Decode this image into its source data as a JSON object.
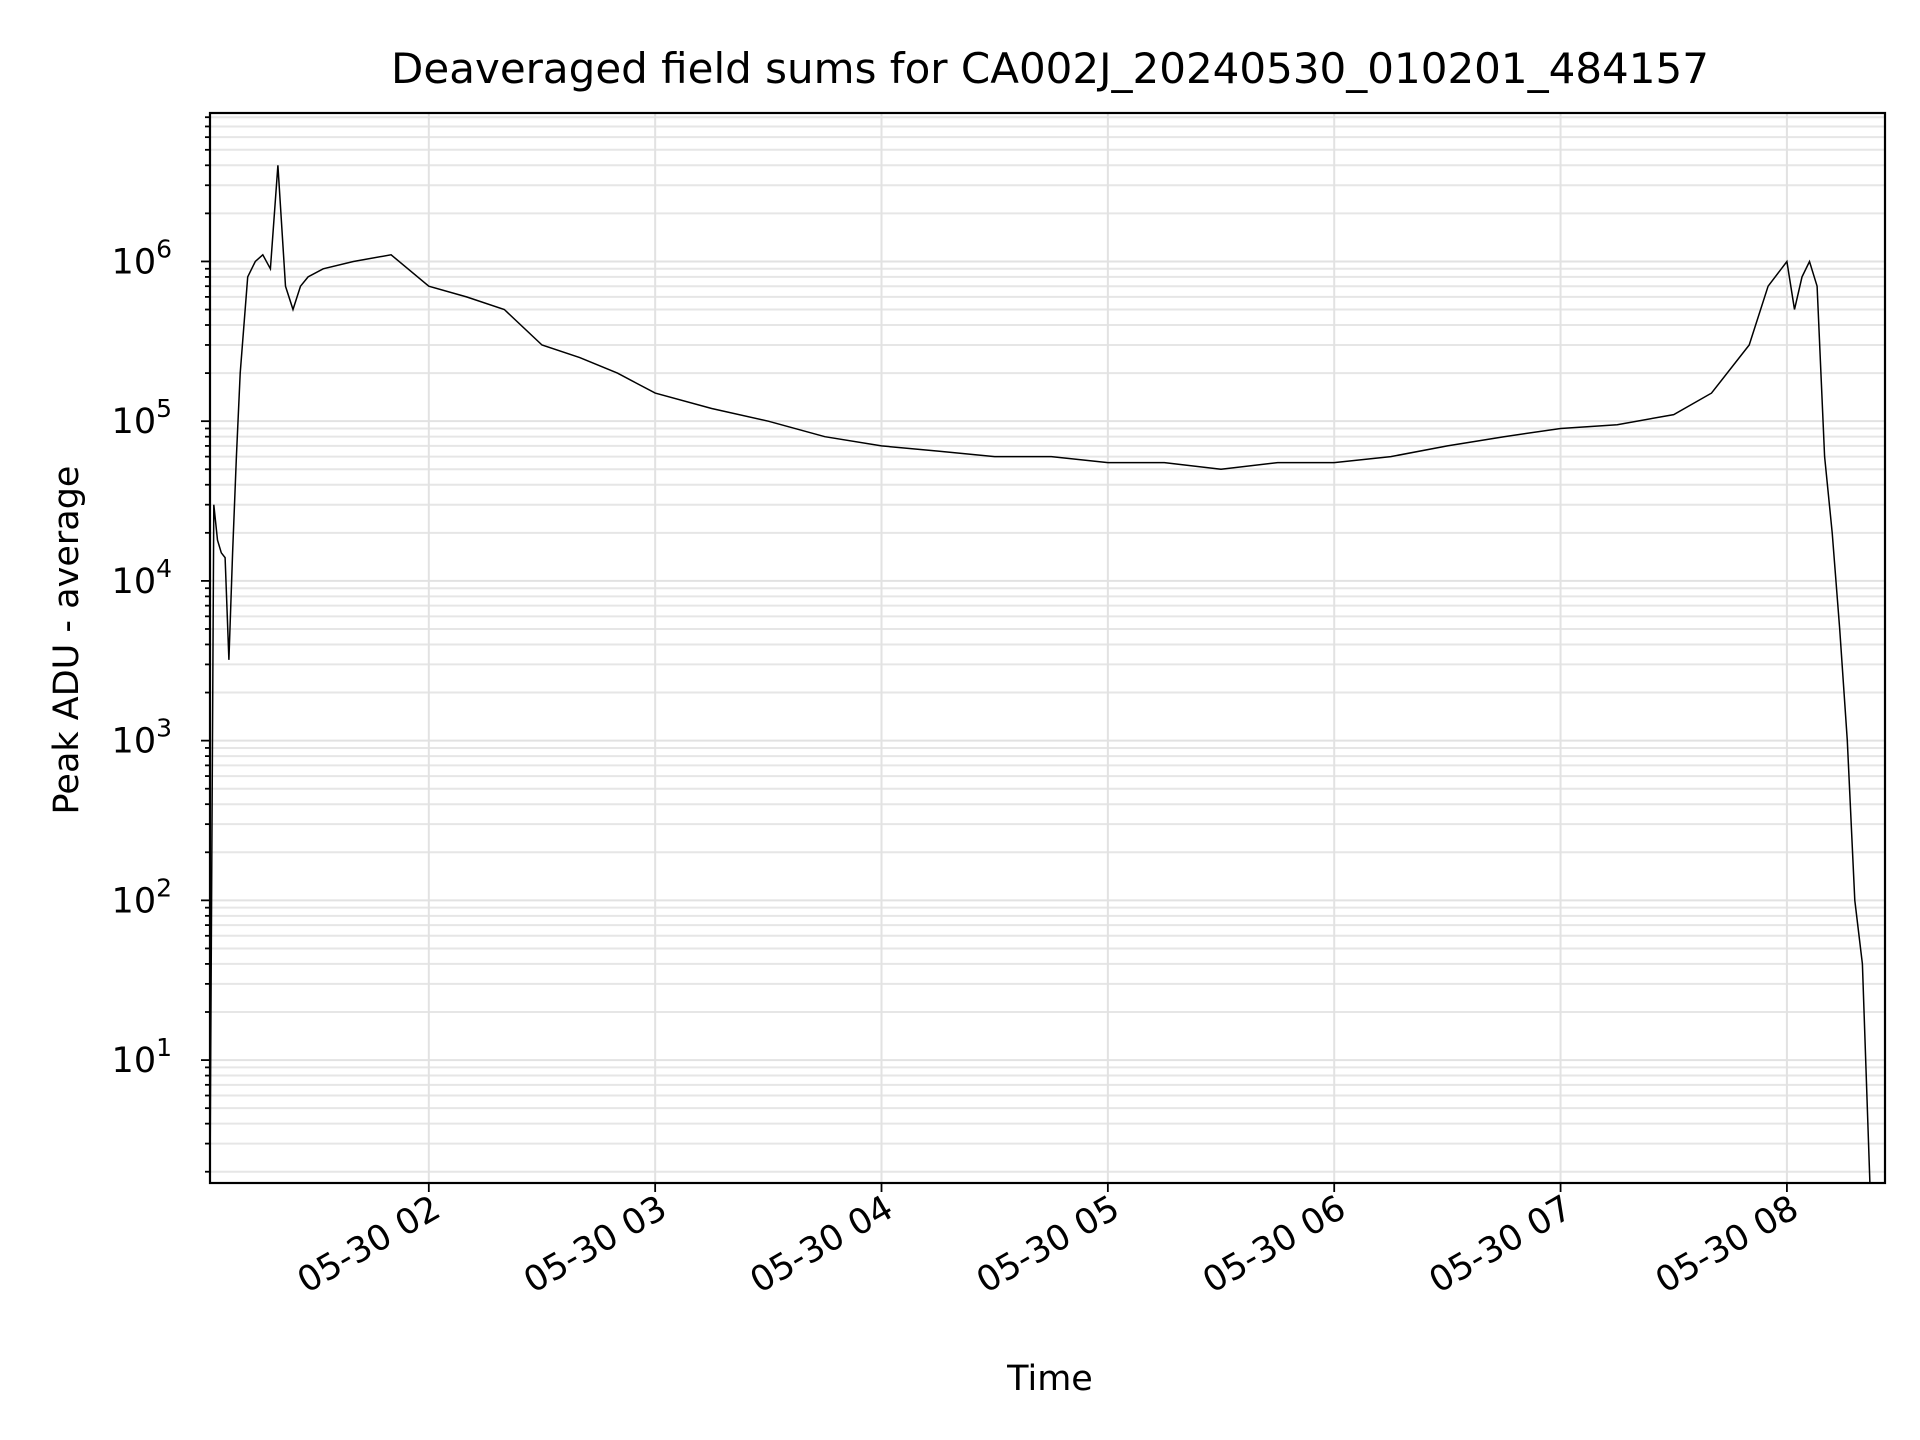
{
  "chart_data": {
    "type": "line",
    "title": "Deaveraged field sums for CA002J_20240530_010201_484157",
    "xlabel": "Time",
    "ylabel": "Peak ADU - average",
    "yscale": "log",
    "ylim": [
      1.7,
      8500000
    ],
    "xlim": [
      "2024-05-30 01:02:00",
      "2024-05-30 08:26:00"
    ],
    "x_ticks": [
      {
        "value": "2024-05-30 02:00",
        "label": "05-30 02"
      },
      {
        "value": "2024-05-30 03:00",
        "label": "05-30 03"
      },
      {
        "value": "2024-05-30 04:00",
        "label": "05-30 04"
      },
      {
        "value": "2024-05-30 05:00",
        "label": "05-30 05"
      },
      {
        "value": "2024-05-30 06:00",
        "label": "05-30 06"
      },
      {
        "value": "2024-05-30 07:00",
        "label": "05-30 07"
      },
      {
        "value": "2024-05-30 08:00",
        "label": "05-30 08"
      }
    ],
    "y_ticks": [
      {
        "value": 10,
        "base": "10",
        "exp": "1"
      },
      {
        "value": 100,
        "base": "10",
        "exp": "2"
      },
      {
        "value": 1000,
        "base": "10",
        "exp": "3"
      },
      {
        "value": 10000,
        "base": "10",
        "exp": "4"
      },
      {
        "value": 100000,
        "base": "10",
        "exp": "5"
      },
      {
        "value": 1000000,
        "base": "10",
        "exp": "6"
      }
    ],
    "grid": "both (major and minor)",
    "legend": "none",
    "line_color": "#000000",
    "series": [
      {
        "x": [
          "2024-05-30 01:02:00",
          "2024-05-30 01:03:00",
          "2024-05-30 01:04:00",
          "2024-05-30 01:05:00",
          "2024-05-30 01:06:00",
          "2024-05-30 01:07:00",
          "2024-05-30 01:08:00",
          "2024-05-30 01:09:00",
          "2024-05-30 01:10:00",
          "2024-05-30 01:12:00",
          "2024-05-30 01:14:00",
          "2024-05-30 01:16:00",
          "2024-05-30 01:18:00",
          "2024-05-30 01:20:00",
          "2024-05-30 01:22:00",
          "2024-05-30 01:24:00",
          "2024-05-30 01:26:00",
          "2024-05-30 01:28:00",
          "2024-05-30 01:32:00",
          "2024-05-30 01:40:00",
          "2024-05-30 01:50:00",
          "2024-05-30 02:00:00",
          "2024-05-30 02:10:00",
          "2024-05-30 02:20:00",
          "2024-05-30 02:30:00",
          "2024-05-30 02:40:00",
          "2024-05-30 02:50:00",
          "2024-05-30 03:00:00",
          "2024-05-30 03:15:00",
          "2024-05-30 03:30:00",
          "2024-05-30 03:45:00",
          "2024-05-30 04:00:00",
          "2024-05-30 04:15:00",
          "2024-05-30 04:30:00",
          "2024-05-30 04:45:00",
          "2024-05-30 05:00:00",
          "2024-05-30 05:15:00",
          "2024-05-30 05:30:00",
          "2024-05-30 05:45:00",
          "2024-05-30 06:00:00",
          "2024-05-30 06:15:00",
          "2024-05-30 06:30:00",
          "2024-05-30 06:45:00",
          "2024-05-30 07:00:00",
          "2024-05-30 07:15:00",
          "2024-05-30 07:30:00",
          "2024-05-30 07:40:00",
          "2024-05-30 07:50:00",
          "2024-05-30 07:55:00",
          "2024-05-30 08:00:00",
          "2024-05-30 08:02:00",
          "2024-05-30 08:04:00",
          "2024-05-30 08:06:00",
          "2024-05-30 08:08:00",
          "2024-05-30 08:10:00",
          "2024-05-30 08:12:00",
          "2024-05-30 08:14:00",
          "2024-05-30 08:16:00",
          "2024-05-30 08:18:00",
          "2024-05-30 08:20:00",
          "2024-05-30 08:22:00",
          "2024-05-30 08:23:00"
        ],
        "y": [
          1.7,
          30000,
          18000,
          15000,
          14000,
          3200,
          15000,
          60000,
          200000,
          800000,
          1000000,
          1100000,
          900000,
          4000000,
          700000,
          500000,
          700000,
          800000,
          900000,
          1000000,
          1100000,
          700000,
          600000,
          500000,
          300000,
          250000,
          200000,
          150000,
          120000,
          100000,
          80000,
          70000,
          65000,
          60000,
          60000,
          55000,
          55000,
          50000,
          55000,
          55000,
          60000,
          70000,
          80000,
          90000,
          95000,
          110000,
          150000,
          300000,
          700000,
          1000000,
          500000,
          800000,
          1000000,
          700000,
          60000,
          20000,
          5000,
          1000,
          100,
          40,
          1.7,
          1.7
        ]
      }
    ]
  }
}
